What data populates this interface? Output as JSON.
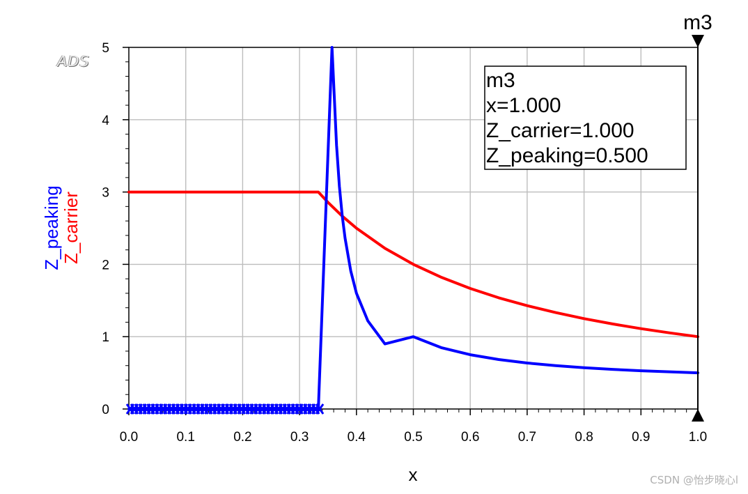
{
  "logo": "ADS",
  "watermark": "CSDN @怡步晓心l",
  "chart_data": {
    "type": "line",
    "xlabel": "x",
    "ylabels": [
      {
        "text": "Z_peaking",
        "color": "#0000ff"
      },
      {
        "text": "Z_carrier",
        "color": "#ff0000"
      }
    ],
    "xlim": [
      0,
      1
    ],
    "ylim": [
      0,
      5
    ],
    "xticks": [
      "0.0",
      "0.1",
      "0.2",
      "0.3",
      "0.4",
      "0.5",
      "0.6",
      "0.7",
      "0.8",
      "0.9",
      "1.0"
    ],
    "yticks": [
      "0",
      "1",
      "2",
      "3",
      "4",
      "5"
    ],
    "grid": true,
    "series": [
      {
        "name": "Z_carrier",
        "color": "#ff0000",
        "x": [
          0.0,
          0.333,
          0.35,
          0.375,
          0.4,
          0.45,
          0.5,
          0.55,
          0.6,
          0.65,
          0.7,
          0.75,
          0.8,
          0.85,
          0.9,
          0.95,
          1.0
        ],
        "y": [
          3.0,
          3.0,
          2.857,
          2.667,
          2.5,
          2.222,
          2.0,
          1.818,
          1.667,
          1.538,
          1.429,
          1.333,
          1.25,
          1.176,
          1.111,
          1.053,
          1.0
        ]
      },
      {
        "name": "Z_peaking",
        "color": "#0000ff",
        "x": [
          0.0,
          0.333,
          0.357,
          0.36,
          0.365,
          0.37,
          0.375,
          0.38,
          0.39,
          0.4,
          0.42,
          0.45,
          0.5,
          0.55,
          0.6,
          0.65,
          0.7,
          0.75,
          0.8,
          0.85,
          0.9,
          0.95,
          1.0
        ],
        "y": [
          0.0,
          0.0,
          5.0,
          4.5,
          3.65,
          3.08,
          2.67,
          2.36,
          1.91,
          1.6,
          1.22,
          0.9,
          1.0,
          0.846,
          0.75,
          0.684,
          0.636,
          0.6,
          0.571,
          0.548,
          0.529,
          0.514,
          0.5
        ]
      }
    ],
    "marker": {
      "name": "m3",
      "x": 1.0,
      "readout": [
        "m3",
        "x=1.000",
        "Z_carrier=1.000",
        "Z_peaking=0.500"
      ]
    }
  }
}
